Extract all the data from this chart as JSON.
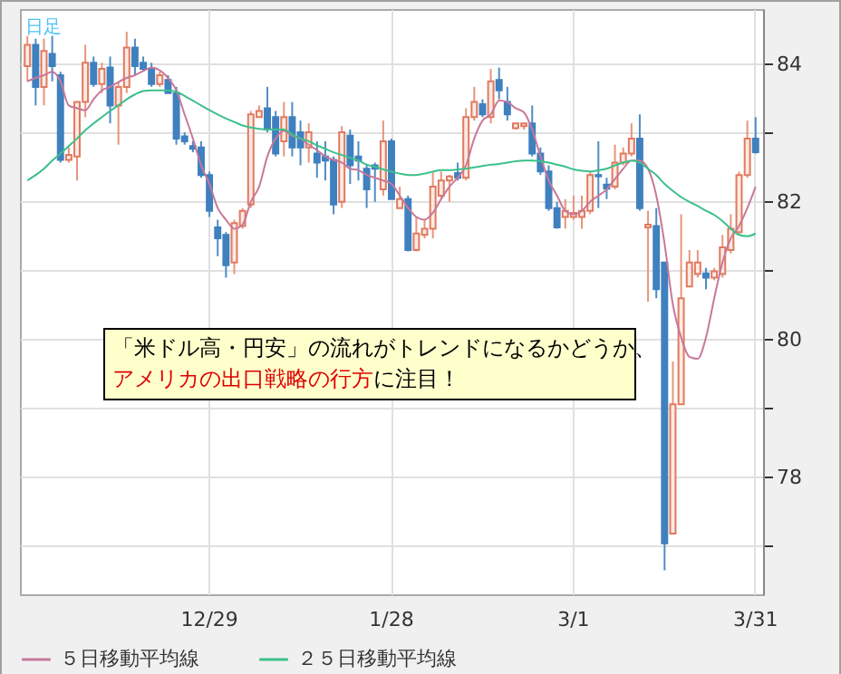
{
  "chart_data": {
    "type": "candlestick",
    "title": "日足",
    "categories": [
      null,
      null,
      null,
      null,
      null,
      null,
      null,
      null,
      null,
      null,
      null,
      null,
      null,
      null,
      null,
      null,
      null,
      null,
      null,
      null,
      null,
      null,
      "12/29",
      null,
      null,
      null,
      null,
      null,
      null,
      null,
      null,
      null,
      null,
      null,
      null,
      null,
      null,
      null,
      null,
      null,
      null,
      null,
      null,
      null,
      "1/28",
      null,
      null,
      null,
      null,
      null,
      null,
      null,
      null,
      null,
      null,
      null,
      null,
      null,
      null,
      null,
      null,
      null,
      null,
      null,
      null,
      null,
      "3/1",
      null,
      null,
      null,
      null,
      null,
      null,
      null,
      null,
      null,
      null,
      null,
      null,
      null,
      null,
      null,
      null,
      null,
      null,
      null,
      null,
      null,
      "3/31"
    ],
    "ohlc": [
      [
        83.97,
        84.41,
        83.75,
        84.28
      ],
      [
        84.28,
        84.37,
        83.4,
        83.67
      ],
      [
        83.67,
        84.37,
        83.4,
        84.19
      ],
      [
        84.15,
        84.41,
        83.75,
        83.97
      ],
      [
        83.84,
        83.89,
        82.57,
        82.61
      ],
      [
        82.61,
        82.79,
        82.57,
        82.68
      ],
      [
        82.66,
        83.45,
        82.31,
        83.45
      ],
      [
        83.45,
        84.28,
        83.23,
        84.02
      ],
      [
        84.02,
        84.11,
        83.67,
        83.71
      ],
      [
        83.71,
        84.02,
        83.58,
        83.93
      ],
      [
        83.95,
        84.11,
        83.14,
        83.4
      ],
      [
        83.4,
        83.75,
        82.83,
        83.67
      ],
      [
        83.67,
        84.47,
        83.58,
        84.24
      ],
      [
        84.24,
        84.37,
        83.84,
        83.97
      ],
      [
        84.02,
        84.11,
        83.89,
        83.93
      ],
      [
        83.93,
        84.02,
        83.67,
        83.71
      ],
      [
        83.71,
        83.89,
        83.67,
        83.84
      ],
      [
        83.77,
        83.84,
        83.58,
        83.58
      ],
      [
        83.58,
        83.67,
        82.83,
        82.92
      ],
      [
        82.95,
        83.01,
        82.83,
        82.88
      ],
      [
        82.81,
        82.88,
        82.72,
        82.77
      ],
      [
        82.79,
        82.88,
        82.35,
        82.39
      ],
      [
        82.39,
        82.44,
        81.78,
        81.87
      ],
      [
        81.63,
        81.74,
        81.21,
        81.47
      ],
      [
        81.52,
        81.56,
        80.9,
        81.08
      ],
      [
        81.12,
        81.74,
        80.95,
        81.69
      ],
      [
        81.65,
        81.91,
        81.61,
        81.87
      ],
      [
        81.96,
        83.32,
        81.91,
        83.27
      ],
      [
        83.23,
        83.4,
        83.23,
        83.32
      ],
      [
        83.36,
        83.67,
        83.01,
        83.05
      ],
      [
        83.23,
        83.32,
        82.66,
        82.7
      ],
      [
        82.88,
        83.45,
        82.66,
        83.23
      ],
      [
        83.23,
        83.45,
        82.66,
        82.79
      ],
      [
        83.01,
        83.18,
        82.53,
        82.79
      ],
      [
        82.79,
        83.14,
        82.57,
        83.01
      ],
      [
        82.7,
        82.88,
        82.35,
        82.57
      ],
      [
        82.66,
        82.88,
        82.31,
        82.6
      ],
      [
        82.61,
        82.66,
        81.82,
        81.96
      ],
      [
        82.0,
        83.1,
        81.91,
        83.01
      ],
      [
        82.96,
        83.05,
        82.26,
        82.53
      ],
      [
        82.66,
        82.88,
        82.31,
        82.6
      ],
      [
        82.48,
        82.53,
        81.91,
        82.18
      ],
      [
        82.53,
        82.57,
        82.0,
        82.48
      ],
      [
        82.18,
        83.18,
        82.09,
        82.88
      ],
      [
        82.88,
        82.92,
        82.04,
        82.04
      ],
      [
        81.91,
        82.22,
        81.91,
        82.04
      ],
      [
        82.04,
        82.09,
        81.28,
        81.3
      ],
      [
        81.3,
        81.78,
        81.28,
        81.54
      ],
      [
        81.52,
        81.74,
        81.47,
        81.61
      ],
      [
        81.61,
        82.44,
        81.47,
        82.22
      ],
      [
        82.09,
        82.44,
        82.04,
        82.31
      ],
      [
        82.31,
        82.39,
        82.0,
        82.37
      ],
      [
        82.42,
        82.57,
        82.31,
        82.35
      ],
      [
        82.35,
        83.36,
        82.31,
        83.23
      ],
      [
        83.23,
        83.67,
        83.18,
        83.45
      ],
      [
        83.42,
        83.49,
        83.23,
        83.27
      ],
      [
        83.23,
        83.93,
        83.14,
        83.75
      ],
      [
        83.77,
        83.95,
        83.49,
        83.62
      ],
      [
        83.45,
        83.67,
        83.18,
        83.27
      ],
      [
        83.07,
        83.14,
        83.05,
        83.14
      ],
      [
        83.1,
        83.14,
        83.05,
        83.14
      ],
      [
        83.14,
        83.4,
        82.66,
        82.7
      ],
      [
        82.7,
        82.79,
        82.39,
        82.44
      ],
      [
        82.44,
        82.53,
        81.87,
        81.91
      ],
      [
        81.91,
        82.0,
        81.61,
        81.63
      ],
      [
        81.78,
        82.04,
        81.61,
        81.87
      ],
      [
        81.78,
        82.09,
        81.74,
        81.84
      ],
      [
        81.78,
        82.09,
        81.61,
        81.87
      ],
      [
        81.87,
        82.44,
        81.82,
        82.39
      ],
      [
        82.39,
        82.88,
        81.91,
        82.37
      ],
      [
        82.25,
        82.35,
        82.04,
        82.19
      ],
      [
        82.22,
        82.83,
        82.18,
        82.57
      ],
      [
        82.57,
        82.79,
        82.53,
        82.7
      ],
      [
        82.7,
        83.14,
        82.66,
        82.92
      ],
      [
        82.92,
        83.27,
        81.87,
        81.91
      ],
      [
        81.63,
        81.87,
        80.55,
        81.67
      ],
      [
        81.65,
        81.91,
        80.6,
        80.73
      ],
      [
        81.12,
        81.12,
        76.65,
        77.04
      ],
      [
        77.18,
        79.68,
        77.18,
        79.06
      ],
      [
        79.06,
        81.82,
        79.06,
        80.6
      ],
      [
        80.77,
        81.3,
        80.77,
        81.12
      ],
      [
        80.95,
        81.3,
        80.9,
        81.12
      ],
      [
        80.96,
        81.04,
        80.73,
        80.9
      ],
      [
        80.9,
        81.04,
        80.86,
        80.99
      ],
      [
        80.95,
        81.52,
        80.9,
        81.34
      ],
      [
        81.3,
        81.82,
        81.25,
        81.61
      ],
      [
        81.56,
        82.44,
        81.52,
        82.39
      ],
      [
        82.39,
        83.18,
        82.35,
        82.92
      ],
      [
        82.92,
        83.23,
        82.7,
        82.72
      ]
    ],
    "series": [
      {
        "name": "５日移動平均線",
        "type": "line",
        "color": "#c8789a",
        "values": [
          83.75,
          83.8,
          83.84,
          83.89,
          83.75,
          83.4,
          83.36,
          83.33,
          83.49,
          83.62,
          83.67,
          83.74,
          83.8,
          83.84,
          83.9,
          83.95,
          83.91,
          83.8,
          83.62,
          83.27,
          82.92,
          82.53,
          82.26,
          81.91,
          81.74,
          81.61,
          81.67,
          82.0,
          82.22,
          82.66,
          82.92,
          83.03,
          82.96,
          82.92,
          82.83,
          82.75,
          82.66,
          82.61,
          82.57,
          82.48,
          82.46,
          82.39,
          82.35,
          82.31,
          82.26,
          82.09,
          81.91,
          81.78,
          81.74,
          81.84,
          82.04,
          82.22,
          82.35,
          82.53,
          82.92,
          83.18,
          83.27,
          83.47,
          83.45,
          83.36,
          83.3,
          83.05,
          82.66,
          82.31,
          82.09,
          81.87,
          81.82,
          81.87,
          82.0,
          82.09,
          82.18,
          82.33,
          82.48,
          82.6,
          82.6,
          82.48,
          82.09,
          81.39,
          80.51,
          80.03,
          79.75,
          79.72,
          80.03,
          80.6,
          81.12,
          81.47,
          81.65,
          81.91,
          82.22
        ]
      },
      {
        "name": "２５日移動平均線",
        "type": "line",
        "color": "#3cc08a",
        "values": [
          82.31,
          82.39,
          82.48,
          82.6,
          82.7,
          82.81,
          82.92,
          83.04,
          83.14,
          83.23,
          83.32,
          83.4,
          83.49,
          83.56,
          83.61,
          83.62,
          83.62,
          83.62,
          83.6,
          83.54,
          83.47,
          83.4,
          83.33,
          83.27,
          83.21,
          83.16,
          83.11,
          83.08,
          83.06,
          83.05,
          83.05,
          83.05,
          82.98,
          82.92,
          82.88,
          82.82,
          82.77,
          82.72,
          82.68,
          82.64,
          82.6,
          82.54,
          82.51,
          82.47,
          82.44,
          82.41,
          82.39,
          82.39,
          82.41,
          82.44,
          82.46,
          82.46,
          82.47,
          82.48,
          82.5,
          82.52,
          82.54,
          82.55,
          82.57,
          82.59,
          82.6,
          82.6,
          82.59,
          82.57,
          82.54,
          82.51,
          82.47,
          82.45,
          82.44,
          82.46,
          82.48,
          82.53,
          82.57,
          82.6,
          82.57,
          82.48,
          82.39,
          82.26,
          82.16,
          82.07,
          82.0,
          81.94,
          81.87,
          81.81,
          81.72,
          81.61,
          81.52,
          81.5,
          81.54
        ]
      }
    ],
    "ylim": [
      76.3,
      84.8
    ],
    "yticks": [
      {
        "value": 77,
        "label": null
      },
      78,
      {
        "value": 79,
        "label": null
      },
      80,
      {
        "value": 81,
        "label": null
      },
      82,
      {
        "value": 83,
        "label": null
      },
      84
    ],
    "grid": true,
    "legend": "bottom",
    "annotations": [
      "「米ドル高・円安」の流れがトレンドになるかどうか、",
      "アメリカの出口戦略の行方",
      "に注目！"
    ]
  }
}
